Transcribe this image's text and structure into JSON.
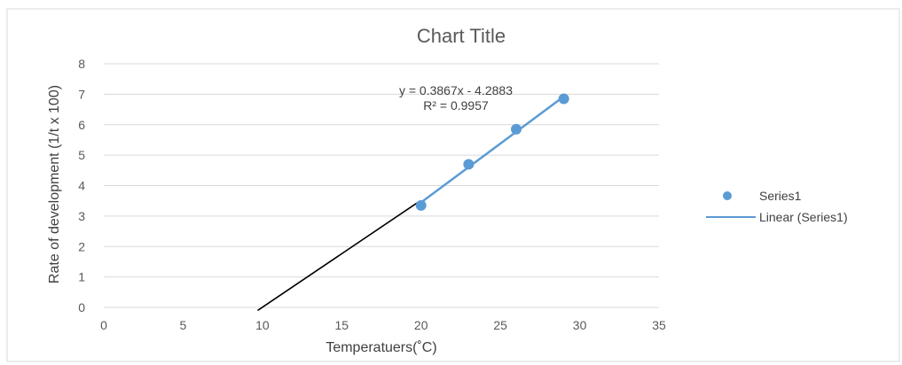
{
  "chart_data": {
    "type": "scatter",
    "title": "Chart Title",
    "xlabel": "Temperatuers(˚C)",
    "ylabel": "Rate of development (1/t x 100)",
    "xlim": [
      0,
      35
    ],
    "ylim": [
      0,
      8
    ],
    "xticks": [
      "0",
      "5",
      "10",
      "15",
      "20",
      "25",
      "30",
      "35"
    ],
    "yticks": [
      "0",
      "1",
      "2",
      "3",
      "4",
      "5",
      "6",
      "7",
      "8"
    ],
    "grid": "horizontal",
    "legend_position": "right",
    "series": [
      {
        "name": "Series1",
        "x": [
          20,
          23,
          26,
          29
        ],
        "y": [
          3.35,
          4.7,
          5.85,
          6.85
        ],
        "color": "#5B9BD5"
      }
    ],
    "trendline": {
      "name": "Linear (Series1)",
      "color": "#5B9BD5",
      "slope": 0.3867,
      "intercept": -4.2883,
      "x_range": [
        20,
        29
      ],
      "equation": "y = 0.3867x - 4.2883",
      "r_squared": "R² = 0.9957"
    },
    "extrapolation_line": {
      "color": "#000000",
      "x": [
        9.7,
        19.8
      ],
      "y": [
        -0.1,
        3.45
      ]
    }
  }
}
